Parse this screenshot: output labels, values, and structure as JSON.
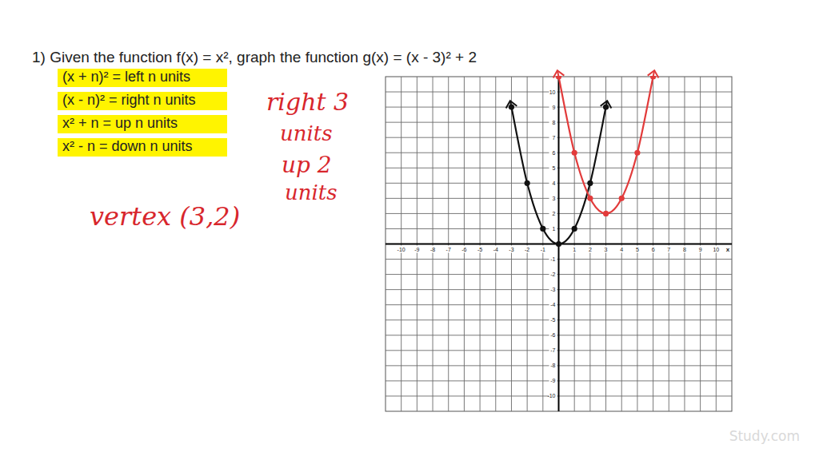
{
  "chart_data": {
    "type": "line",
    "title": "1)  Given the function f(x) = x², graph the function g(x) = (x - 3)² + 2",
    "annotations": [
      "(x + n)² = left n units",
      "(x - n)² = right n units",
      "x² + n = up n units",
      "x² - n = down n units",
      "right 3",
      "units",
      "up 2",
      "units",
      "vertex (3,2)",
      "Study.com"
    ],
    "xlabel": "x",
    "xlim": [
      -11,
      11
    ],
    "ylim": [
      -11,
      11
    ],
    "xticks": [
      -10,
      -9,
      -8,
      -7,
      -6,
      -5,
      -4,
      -3,
      -2,
      -1,
      1,
      2,
      3,
      4,
      5,
      6,
      7,
      8,
      9,
      10
    ],
    "yticks": [
      -10,
      -9,
      -8,
      -7,
      -6,
      -5,
      -4,
      -3,
      -2,
      -1,
      1,
      2,
      3,
      4,
      5,
      6,
      7,
      8,
      9,
      10
    ],
    "grid": true,
    "series": [
      {
        "color": "#111111",
        "marker": "circle",
        "x": [
          -3,
          -2,
          -1,
          0,
          1,
          2,
          3
        ],
        "values": [
          9,
          4,
          1,
          0,
          1,
          4,
          9
        ]
      },
      {
        "color": "#e23b3b",
        "marker": "circle",
        "x": [
          0,
          1,
          2,
          3,
          4,
          5,
          6
        ],
        "values": [
          11,
          6,
          3,
          2,
          3,
          6,
          11
        ]
      }
    ]
  }
}
